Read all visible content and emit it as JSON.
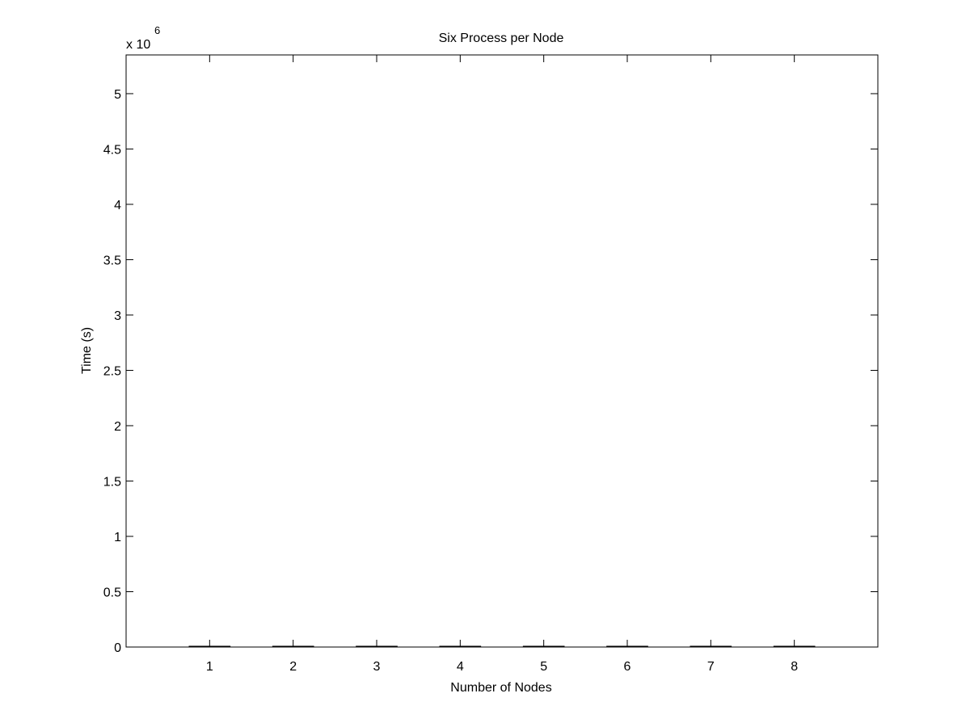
{
  "chart_data": {
    "type": "bar",
    "title": "Six Process per Node",
    "xlabel": "Number of Nodes",
    "ylabel": "Time (s)",
    "y_multiplier_label": "x 10",
    "y_multiplier_exponent": "6",
    "categories": [
      "1",
      "2",
      "3",
      "4",
      "5",
      "6",
      "7",
      "8"
    ],
    "values": [
      0,
      0,
      0,
      0,
      0,
      0,
      0,
      0
    ],
    "y_ticks": [
      {
        "value": 0,
        "label": "0"
      },
      {
        "value": 0.5,
        "label": "0.5"
      },
      {
        "value": 1,
        "label": "1"
      },
      {
        "value": 1.5,
        "label": "1.5"
      },
      {
        "value": 2,
        "label": "2"
      },
      {
        "value": 2.5,
        "label": "2.5"
      },
      {
        "value": 3,
        "label": "3"
      },
      {
        "value": 3.5,
        "label": "3.5"
      },
      {
        "value": 4,
        "label": "4"
      },
      {
        "value": 4.5,
        "label": "4.5"
      },
      {
        "value": 5,
        "label": "5"
      }
    ],
    "xlim": [
      0,
      9
    ],
    "ylim": [
      0,
      5.35
    ],
    "grid": false,
    "legend": "none",
    "bar_color": "#000000",
    "axis_color": "#000000",
    "background_color": "#ffffff"
  }
}
